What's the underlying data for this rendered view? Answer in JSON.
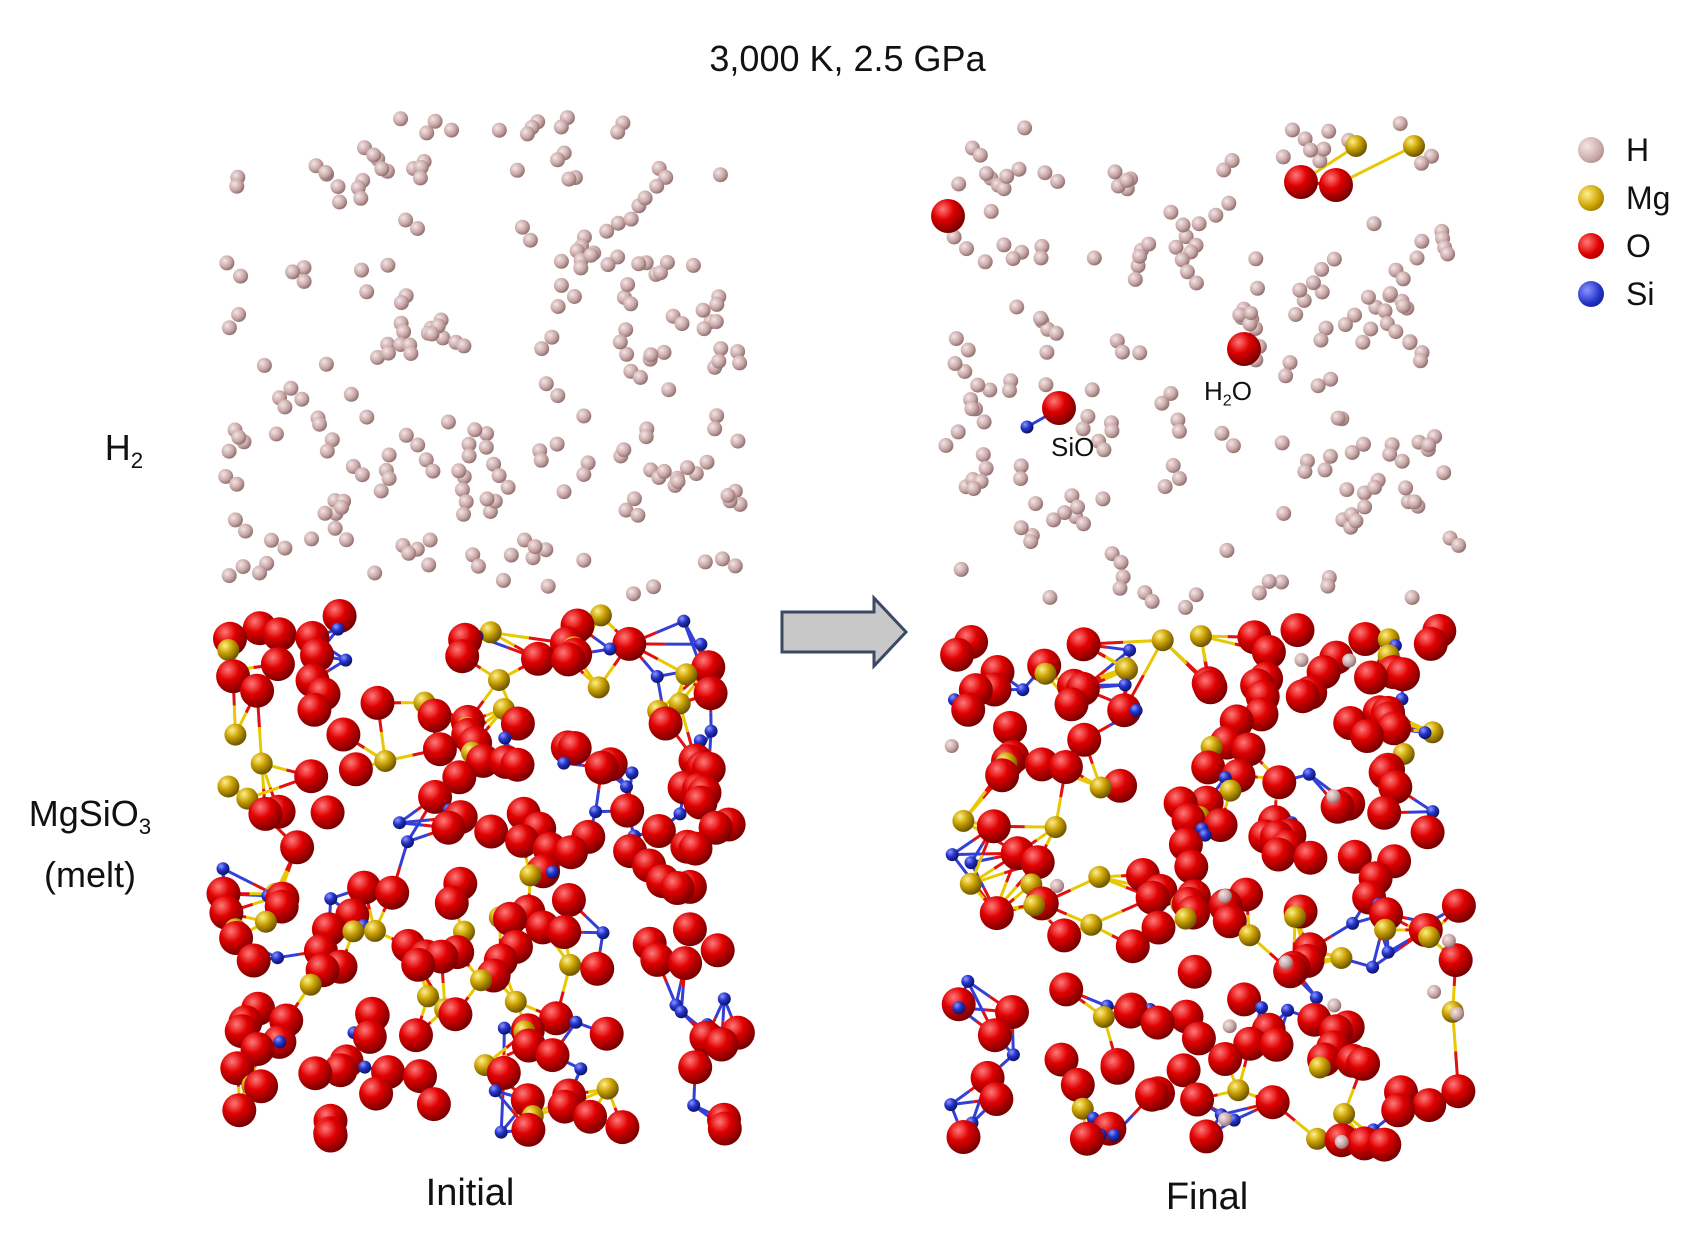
{
  "title": "3,000 K, 2.5 GPa",
  "left_labels": {
    "h2_main": "H",
    "h2_sub": "2",
    "melt_main": "MgSiO",
    "melt_sub": "3",
    "melt_note": "(melt)"
  },
  "panels": {
    "initial": "Initial",
    "final": "Final"
  },
  "annotations": {
    "h2o_main": "H",
    "h2o_sub": "2",
    "h2o_tail": "O",
    "sio": "SiO"
  },
  "legend": [
    {
      "symbol": "H",
      "color": "#c9a7a7"
    },
    {
      "symbol": "Mg",
      "color": "#c7a000"
    },
    {
      "symbol": "O",
      "color": "#d40000"
    },
    {
      "symbol": "Si",
      "color": "#2433c9"
    }
  ],
  "colors": {
    "hydrogen": "#c9a7a7",
    "magnesium": "#c7a000",
    "oxygen": "#d40000",
    "silicon": "#2433c9",
    "arrow_fill": "#c8c8c8",
    "arrow_stroke": "#3b4a63"
  },
  "arrow_icon": "right-arrow-icon"
}
